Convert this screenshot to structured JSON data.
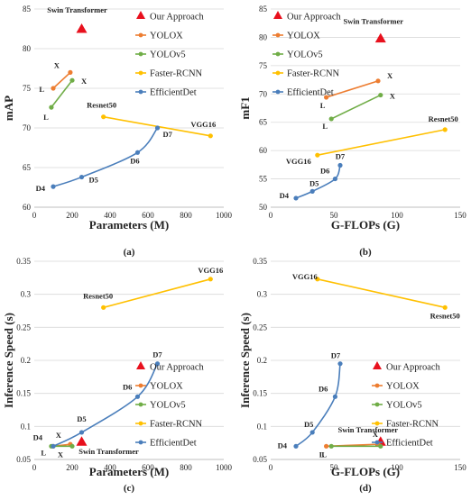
{
  "figure": {
    "panel_captions": [
      "(a)",
      "(b)",
      "(c)",
      "(d)"
    ]
  },
  "colors": {
    "Our Approach": "#e8101d",
    "YOLOX": "#ed7d31",
    "YOLOv5": "#70ad47",
    "Faster-RCNN": "#ffc000",
    "EfficientDet": "#4a7ebb",
    "axis": "#bfbfbf",
    "grid": "#d9d9d9",
    "text": "#222222"
  },
  "chart_data": [
    {
      "type": "line",
      "panel": "a",
      "caption": "(a)",
      "xlabel": "Parameters (M)",
      "ylabel": "mAP",
      "xlim": [
        0,
        1000
      ],
      "ylim": [
        60,
        85
      ],
      "xticks": [
        0,
        200,
        400,
        600,
        800,
        1000
      ],
      "yticks": [
        60,
        65,
        70,
        75,
        80,
        85
      ],
      "grid": "horizontal",
      "legend": "right",
      "series": [
        {
          "name": "Our Approach",
          "marker": "triangle",
          "points": [
            [
              250,
              82.5
            ]
          ],
          "labels": [
            "Swin Transformer"
          ]
        },
        {
          "name": "YOLOX",
          "marker": "circle",
          "points": [
            [
              100,
              75.0
            ],
            [
              190,
              77.0
            ]
          ],
          "labels": [
            "L",
            "X"
          ]
        },
        {
          "name": "YOLOv5",
          "marker": "circle",
          "points": [
            [
              90,
              72.6
            ],
            [
              200,
              76.0
            ]
          ],
          "labels": [
            "L",
            "X"
          ]
        },
        {
          "name": "Faster-RCNN",
          "marker": "circle",
          "points": [
            [
              365,
              71.4
            ],
            [
              930,
              69.0
            ]
          ],
          "labels": [
            "Resnet50",
            "VGG16"
          ]
        },
        {
          "name": "EfficientDet",
          "marker": "circle",
          "smooth": true,
          "points": [
            [
              100,
              62.6
            ],
            [
              250,
              63.8
            ],
            [
              545,
              66.9
            ],
            [
              650,
              70.0
            ]
          ],
          "labels": [
            "D4",
            "D5",
            "D6",
            "D7"
          ]
        }
      ]
    },
    {
      "type": "line",
      "panel": "b",
      "caption": "(b)",
      "xlabel": "G-FLOPs (G)",
      "ylabel": "mF1",
      "xlim": [
        0,
        150
      ],
      "ylim": [
        50,
        85
      ],
      "xticks": [
        0,
        50,
        100,
        150
      ],
      "yticks": [
        50,
        55,
        60,
        65,
        70,
        75,
        80,
        85
      ],
      "grid": "horizontal",
      "legend": "top-left",
      "series": [
        {
          "name": "Our Approach",
          "marker": "triangle",
          "points": [
            [
              87,
              79.8
            ]
          ],
          "labels": [
            "Swin Transformer"
          ]
        },
        {
          "name": "YOLOX",
          "marker": "circle",
          "points": [
            [
              44,
              69.4
            ],
            [
              85,
              72.3
            ]
          ],
          "labels": [
            "L",
            "X"
          ]
        },
        {
          "name": "YOLOv5",
          "marker": "circle",
          "points": [
            [
              48,
              65.6
            ],
            [
              87,
              69.8
            ]
          ],
          "labels": [
            "L",
            "X"
          ]
        },
        {
          "name": "Faster-RCNN",
          "marker": "circle",
          "points": [
            [
              37,
              59.2
            ],
            [
              138,
              63.7
            ]
          ],
          "labels": [
            "VGG16",
            "Resnet50"
          ]
        },
        {
          "name": "EfficientDet",
          "marker": "circle",
          "smooth": true,
          "points": [
            [
              20,
              51.6
            ],
            [
              33,
              52.8
            ],
            [
              51,
              55.0
            ],
            [
              55,
              57.4
            ]
          ],
          "labels": [
            "D4",
            "D5",
            "D6",
            "D7"
          ]
        }
      ]
    },
    {
      "type": "line",
      "panel": "c",
      "caption": "(c)",
      "xlabel": "Parameters (M)",
      "ylabel": "Inference Speed (s)",
      "xlim": [
        0,
        1000
      ],
      "ylim": [
        0.05,
        0.35
      ],
      "xticks": [
        0,
        200,
        400,
        600,
        800,
        1000
      ],
      "yticks": [
        0.05,
        0.1,
        0.15,
        0.2,
        0.25,
        0.3,
        0.35
      ],
      "grid": "horizontal",
      "legend": "right",
      "series": [
        {
          "name": "Our Approach",
          "marker": "triangle",
          "points": [
            [
              250,
              0.077
            ]
          ],
          "labels": [
            "Swin Transformer"
          ]
        },
        {
          "name": "YOLOX",
          "marker": "circle",
          "points": [
            [
              100,
              0.07
            ],
            [
              190,
              0.073
            ]
          ],
          "labels": [
            "L",
            "X"
          ]
        },
        {
          "name": "YOLOv5",
          "marker": "circle",
          "points": [
            [
              90,
              0.07
            ],
            [
              200,
              0.07
            ]
          ],
          "labels": [
            "L",
            "X"
          ]
        },
        {
          "name": "Faster-RCNN",
          "marker": "circle",
          "points": [
            [
              365,
              0.28
            ],
            [
              930,
              0.323
            ]
          ],
          "labels": [
            "Resnet50",
            "VGG16"
          ]
        },
        {
          "name": "EfficientDet",
          "marker": "circle",
          "smooth": true,
          "points": [
            [
              100,
              0.07
            ],
            [
              250,
              0.091
            ],
            [
              545,
              0.145
            ],
            [
              650,
              0.195
            ]
          ],
          "labels": [
            "D4",
            "D5",
            "D6",
            "D7"
          ]
        }
      ]
    },
    {
      "type": "line",
      "panel": "d",
      "caption": "(d)",
      "xlabel": "G-FLOPs (G)",
      "ylabel": "Inference Speed (s)",
      "xlim": [
        0,
        150
      ],
      "ylim": [
        0.05,
        0.35
      ],
      "xticks": [
        0,
        50,
        100,
        150
      ],
      "yticks": [
        0.05,
        0.1,
        0.15,
        0.2,
        0.25,
        0.3,
        0.35
      ],
      "grid": "horizontal",
      "legend": "right",
      "series": [
        {
          "name": "Our Approach",
          "marker": "triangle",
          "points": [
            [
              87,
              0.077
            ]
          ],
          "labels": [
            "Swin Transformer"
          ]
        },
        {
          "name": "YOLOX",
          "marker": "circle",
          "points": [
            [
              44,
              0.07
            ],
            [
              85,
              0.073
            ]
          ],
          "labels": [
            "L",
            "X"
          ]
        },
        {
          "name": "YOLOv5",
          "marker": "circle",
          "points": [
            [
              48,
              0.07
            ],
            [
              87,
              0.07
            ]
          ],
          "labels": [
            "L",
            "X"
          ]
        },
        {
          "name": "Faster-RCNN",
          "marker": "circle",
          "points": [
            [
              37,
              0.323
            ],
            [
              138,
              0.28
            ]
          ],
          "labels": [
            "VGG16",
            "Resnet50"
          ]
        },
        {
          "name": "EfficientDet",
          "marker": "circle",
          "smooth": true,
          "points": [
            [
              20,
              0.07
            ],
            [
              33,
              0.091
            ],
            [
              51,
              0.145
            ],
            [
              55,
              0.195
            ]
          ],
          "labels": [
            "D4",
            "D5",
            "D6",
            "D7"
          ]
        }
      ]
    }
  ]
}
